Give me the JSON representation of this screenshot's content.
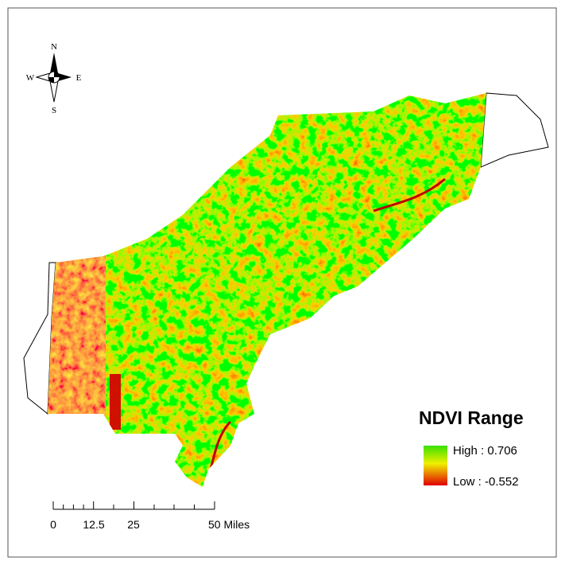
{
  "north_arrow": {
    "n": "N",
    "s": "S",
    "e": "E",
    "w": "W"
  },
  "legend": {
    "title": "NDVI Range",
    "high": "High : 0.706",
    "low": "Low : -0.552"
  },
  "scale_bar": {
    "labels": [
      "0",
      "12.5",
      "25",
      "50 Miles"
    ]
  }
}
